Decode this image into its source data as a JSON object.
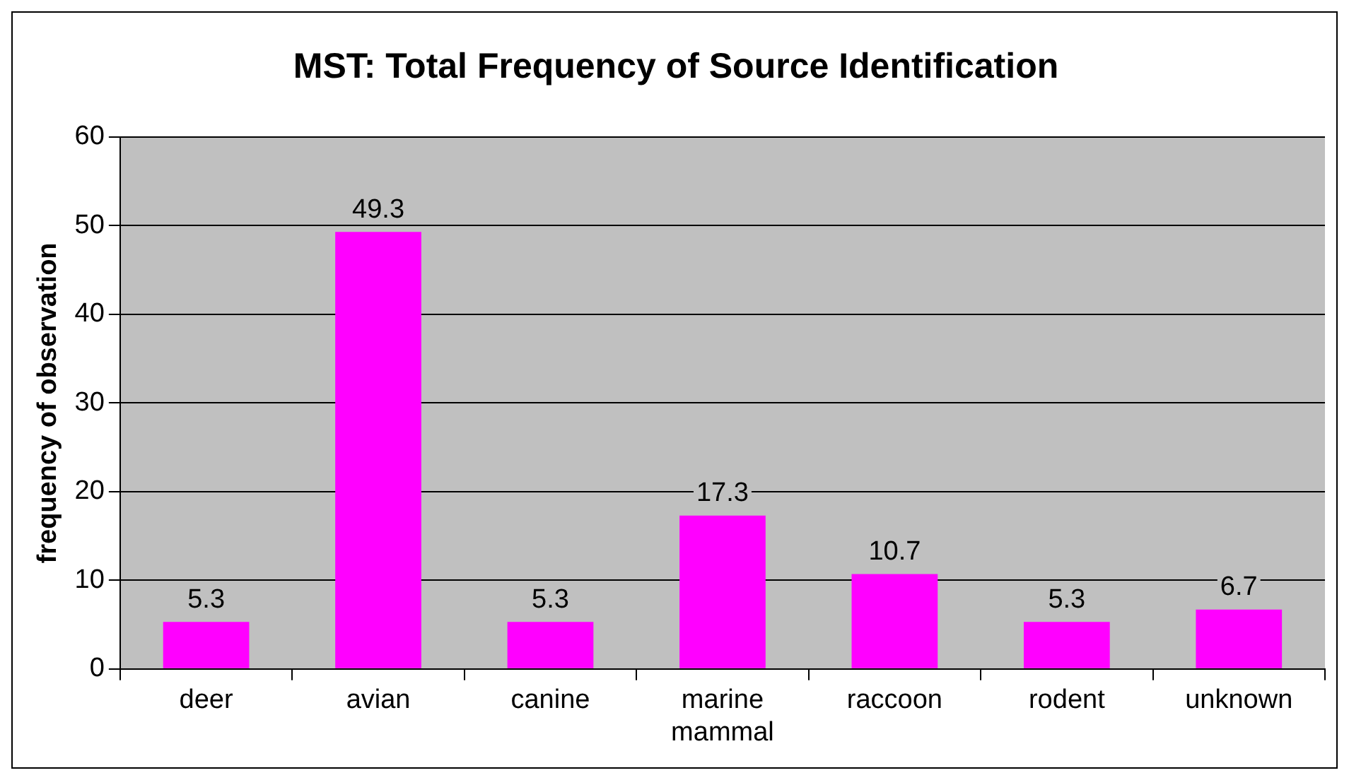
{
  "chart_data": {
    "type": "bar",
    "title": "MST: Total Frequency of Source Identification",
    "ylabel": "frequency of observation",
    "categories": [
      "deer",
      "avian",
      "canine",
      "marine mammal",
      "raccoon",
      "rodent",
      "unknown"
    ],
    "values": [
      5.3,
      49.3,
      5.3,
      17.3,
      10.7,
      5.3,
      6.7
    ],
    "color": "#ff00ff",
    "ylim": [
      0,
      60
    ],
    "yticks": [
      0,
      10,
      20,
      30,
      40,
      50,
      60
    ],
    "grid": "y",
    "legend": false,
    "data_labels": true
  }
}
